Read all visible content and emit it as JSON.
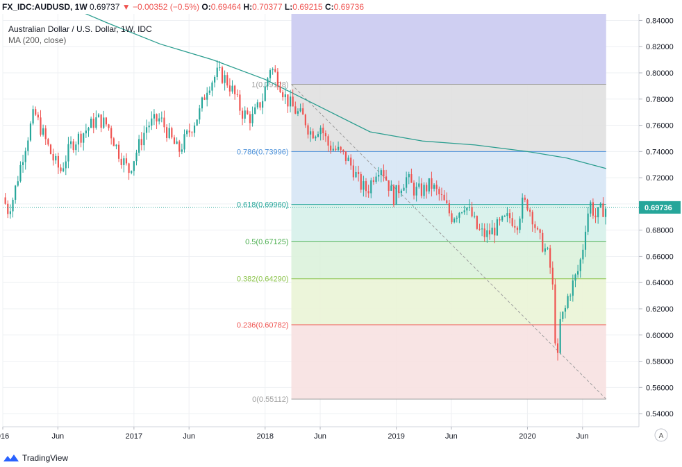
{
  "header": {
    "symbol": "FX_IDC:AUDUSD, 1W",
    "last": "0.69737",
    "change_arrow": "▼",
    "change": "−0.00352 (−0.5%)",
    "o_label": "O:",
    "o_value": "0.69464",
    "h_label": "H:",
    "h_value": "0.70377",
    "l_label": "L:",
    "l_value": "0.69215",
    "c_label": "C:",
    "c_value": "0.69736"
  },
  "legend": {
    "title": "Australian Dollar / U.S. Dollar, 1W, IDC",
    "indicator": "MA (200, close)"
  },
  "colors": {
    "up": "#26a69a",
    "down": "#ef5350",
    "ma": "#2a9d8f",
    "price_tag": "#26a69a"
  },
  "price_tag": "0.69736",
  "footer": {
    "brand": "TradingView",
    "logo_icon": "tradingview-logo-icon"
  },
  "axis_button": "A",
  "chart_data": {
    "type": "candlestick",
    "symbol": "AUDUSD",
    "interval": "1W",
    "y_axis": {
      "range": [
        0.53,
        0.845
      ],
      "ticks": [
        "0.84000",
        "0.82000",
        "0.80000",
        "0.78000",
        "0.76000",
        "0.74000",
        "0.72000",
        "0.70000",
        "0.68000",
        "0.66000",
        "0.64000",
        "0.62000",
        "0.60000",
        "0.58000",
        "0.56000",
        "0.54000"
      ]
    },
    "x_axis": {
      "range": [
        2016.0,
        2020.85
      ],
      "ticks": [
        {
          "t": 2016.0,
          "label": "016"
        },
        {
          "t": 2016.42,
          "label": "Jun"
        },
        {
          "t": 2017.0,
          "label": "2017"
        },
        {
          "t": 2017.42,
          "label": "Jun"
        },
        {
          "t": 2018.0,
          "label": "2018"
        },
        {
          "t": 2018.42,
          "label": "Jun"
        },
        {
          "t": 2019.0,
          "label": "2019"
        },
        {
          "t": 2019.42,
          "label": "Jun"
        },
        {
          "t": 2020.0,
          "label": "2020"
        },
        {
          "t": 2020.42,
          "label": "Jun"
        }
      ]
    },
    "close_path": [
      [
        2016.0,
        0.705
      ],
      [
        2016.04,
        0.695
      ],
      [
        2016.08,
        0.705
      ],
      [
        2016.16,
        0.74
      ],
      [
        2016.24,
        0.77
      ],
      [
        2016.3,
        0.755
      ],
      [
        2016.38,
        0.735
      ],
      [
        2016.44,
        0.725
      ],
      [
        2016.52,
        0.745
      ],
      [
        2016.62,
        0.755
      ],
      [
        2016.72,
        0.765
      ],
      [
        2016.8,
        0.76
      ],
      [
        2016.88,
        0.74
      ],
      [
        2016.96,
        0.725
      ],
      [
        2017.02,
        0.74
      ],
      [
        2017.1,
        0.76
      ],
      [
        2017.2,
        0.765
      ],
      [
        2017.28,
        0.75
      ],
      [
        2017.34,
        0.74
      ],
      [
        2017.42,
        0.755
      ],
      [
        2017.5,
        0.77
      ],
      [
        2017.56,
        0.79
      ],
      [
        2017.64,
        0.8
      ],
      [
        2017.7,
        0.795
      ],
      [
        2017.76,
        0.785
      ],
      [
        2017.82,
        0.77
      ],
      [
        2017.9,
        0.765
      ],
      [
        2017.98,
        0.78
      ],
      [
        2018.04,
        0.805
      ],
      [
        2018.1,
        0.795
      ],
      [
        2018.16,
        0.78
      ],
      [
        2018.24,
        0.77
      ],
      [
        2018.3,
        0.765
      ],
      [
        2018.34,
        0.755
      ],
      [
        2018.38,
        0.755
      ],
      [
        2018.42,
        0.76
      ],
      [
        2018.48,
        0.745
      ],
      [
        2018.56,
        0.74
      ],
      [
        2018.62,
        0.735
      ],
      [
        2018.68,
        0.725
      ],
      [
        2018.72,
        0.715
      ],
      [
        2018.78,
        0.71
      ],
      [
        2018.84,
        0.725
      ],
      [
        2018.88,
        0.73
      ],
      [
        2018.94,
        0.715
      ],
      [
        2018.98,
        0.705
      ],
      [
        2019.04,
        0.715
      ],
      [
        2019.08,
        0.72
      ],
      [
        2019.14,
        0.71
      ],
      [
        2019.2,
        0.71
      ],
      [
        2019.26,
        0.715
      ],
      [
        2019.3,
        0.71
      ],
      [
        2019.34,
        0.705
      ],
      [
        2019.38,
        0.698
      ],
      [
        2019.42,
        0.69
      ],
      [
        2019.48,
        0.695
      ],
      [
        2019.52,
        0.7
      ],
      [
        2019.58,
        0.69
      ],
      [
        2019.62,
        0.68
      ],
      [
        2019.68,
        0.676
      ],
      [
        2019.74,
        0.68
      ],
      [
        2019.8,
        0.685
      ],
      [
        2019.86,
        0.69
      ],
      [
        2019.92,
        0.685
      ],
      [
        2019.96,
        0.7
      ],
      [
        2020.0,
        0.7
      ],
      [
        2020.04,
        0.69
      ],
      [
        2020.08,
        0.675
      ],
      [
        2020.12,
        0.668
      ],
      [
        2020.16,
        0.66
      ],
      [
        2020.19,
        0.64
      ],
      [
        2020.21,
        0.6
      ],
      [
        2020.23,
        0.58
      ],
      [
        2020.25,
        0.61
      ],
      [
        2020.29,
        0.62
      ],
      [
        2020.31,
        0.63
      ],
      [
        2020.35,
        0.64
      ],
      [
        2020.39,
        0.65
      ],
      [
        2020.42,
        0.665
      ],
      [
        2020.45,
        0.69
      ],
      [
        2020.48,
        0.7
      ],
      [
        2020.52,
        0.69
      ],
      [
        2020.56,
        0.695
      ],
      [
        2020.6,
        0.697
      ]
    ],
    "ma_200": [
      [
        2016.0,
        0.87
      ],
      [
        2016.4,
        0.855
      ],
      [
        2016.8,
        0.838
      ],
      [
        2017.2,
        0.822
      ],
      [
        2017.6,
        0.81
      ],
      [
        2018.0,
        0.795
      ],
      [
        2018.4,
        0.775
      ],
      [
        2018.8,
        0.755
      ],
      [
        2019.2,
        0.748
      ],
      [
        2019.6,
        0.745
      ],
      [
        2020.0,
        0.74
      ],
      [
        2020.3,
        0.735
      ],
      [
        2020.6,
        0.727
      ]
    ],
    "fibonacci": {
      "start": 2018.2,
      "end": 2020.6,
      "levels": [
        {
          "label": "1(0.79128)",
          "price": 0.79128,
          "line": "#9e9e9e",
          "fill": "#e0e0e0",
          "fill_opacity": 0.9
        },
        {
          "label": "0.786(0.73996)",
          "price": 0.73996,
          "line": "#4a90d9",
          "fill": "#d6e6f5",
          "fill_opacity": 0.9
        },
        {
          "label": "0.618(0.69960)",
          "price": 0.6996,
          "line": "#26a69a",
          "fill": "#d6f1ea",
          "fill_opacity": 0.9
        },
        {
          "label": "0.5(0.67125)",
          "price": 0.67125,
          "line": "#4caf50",
          "fill": "#dcf2dc",
          "fill_opacity": 0.9
        },
        {
          "label": "0.382(0.64290)",
          "price": 0.6429,
          "line": "#8bc34a",
          "fill": "#eaf4d6",
          "fill_opacity": 0.9
        },
        {
          "label": "0.236(0.60782)",
          "price": 0.60782,
          "line": "#ef5350",
          "fill": "#f7e1e1",
          "fill_opacity": 0.9
        },
        {
          "label": "0(0.55112)",
          "price": 0.55112,
          "line": "#9e9e9e",
          "fill": "#f2d4d4",
          "fill_opacity": 0.9
        }
      ],
      "top_zone": {
        "price": 0.845,
        "fill": "#cfcff2"
      },
      "trend_line": {
        "from": [
          2018.2,
          0.79128
        ],
        "to": [
          2020.6,
          0.55112
        ]
      }
    },
    "last_price": 0.69736
  }
}
